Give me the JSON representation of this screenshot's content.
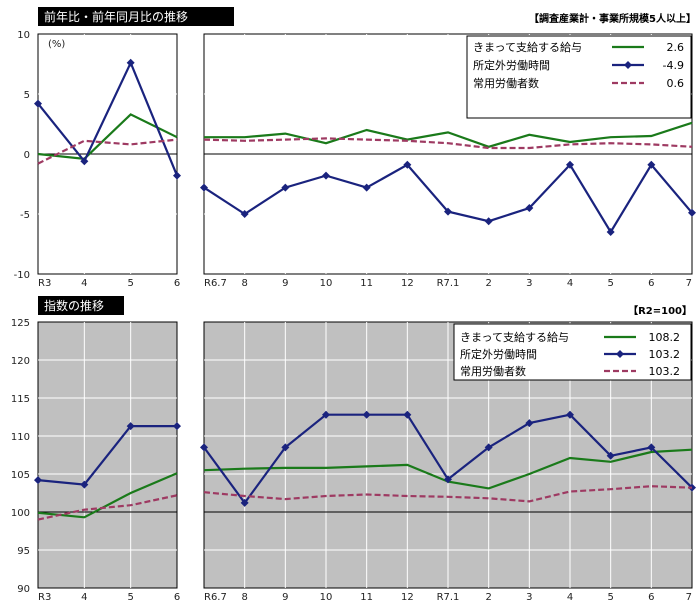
{
  "chart_data": [
    {
      "type": "line",
      "title": "前年比・前年同月比の推移",
      "note": "【調査産業計・事業所規模5人以上】",
      "unit_label": "(%)",
      "ylim": [
        -10,
        10
      ],
      "y_ticks": [
        10,
        5,
        0,
        -5,
        -10
      ],
      "left_categories": [
        "R3",
        "4",
        "5",
        "6"
      ],
      "right_categories": [
        "R6.7",
        "8",
        "9",
        "10",
        "11",
        "12",
        "R7.1",
        "2",
        "3",
        "4",
        "5",
        "6",
        "7"
      ],
      "series": [
        {
          "name": "きまって支給する給与",
          "legend_value": "2.6",
          "color": "#1a7a1a",
          "style": "solid",
          "marker": "none",
          "left_values": [
            0,
            -0.4,
            3.3,
            1.4
          ],
          "right_values": [
            1.4,
            1.4,
            1.7,
            0.9,
            2.0,
            1.2,
            1.8,
            0.6,
            1.6,
            1.0,
            1.4,
            1.5,
            2.6
          ]
        },
        {
          "name": "所定外労働時間",
          "legend_value": "-4.9",
          "color": "#1a237e",
          "style": "solid",
          "marker": "diamond",
          "left_values": [
            4.2,
            -0.6,
            7.6,
            -1.8
          ],
          "right_values": [
            -2.8,
            -5.0,
            -2.8,
            -1.8,
            -2.8,
            -0.9,
            -4.8,
            -5.6,
            -4.5,
            -0.9,
            -6.5,
            -0.9,
            -4.9
          ]
        },
        {
          "name": "常用労働者数",
          "legend_value": "0.6",
          "color": "#9e3a62",
          "style": "dashed",
          "marker": "none",
          "left_values": [
            -0.8,
            1.1,
            0.8,
            1.2
          ],
          "right_values": [
            1.2,
            1.1,
            1.2,
            1.3,
            1.2,
            1.1,
            0.9,
            0.5,
            0.5,
            0.8,
            0.9,
            0.8,
            0.6
          ]
        }
      ]
    },
    {
      "type": "line",
      "title": "指数の推移",
      "note": "【R2=100】",
      "ylim": [
        90,
        125
      ],
      "y_ticks": [
        125,
        120,
        115,
        110,
        105,
        100,
        95,
        90
      ],
      "left_categories": [
        "R3",
        "4",
        "5",
        "6"
      ],
      "right_categories": [
        "R6.7",
        "8",
        "9",
        "10",
        "11",
        "12",
        "R7.1",
        "2",
        "3",
        "4",
        "5",
        "6",
        "7"
      ],
      "series": [
        {
          "name": "きまって支給する給与",
          "legend_value": "108.2",
          "color": "#1a7a1a",
          "style": "solid",
          "marker": "none",
          "left_values": [
            99.9,
            99.3,
            102.5,
            105.1
          ],
          "right_values": [
            105.5,
            105.7,
            105.8,
            105.8,
            106.0,
            106.2,
            104.0,
            103.1,
            105.0,
            107.1,
            106.6,
            107.9,
            108.2
          ]
        },
        {
          "name": "所定外労働時間",
          "legend_value": "103.2",
          "color": "#1a237e",
          "style": "solid",
          "marker": "diamond",
          "left_values": [
            104.2,
            103.6,
            111.3,
            111.3
          ],
          "right_values": [
            108.5,
            101.2,
            108.5,
            112.8,
            112.8,
            112.8,
            104.3,
            108.5,
            111.7,
            112.8,
            107.4,
            108.5,
            103.2
          ]
        },
        {
          "name": "常用労働者数",
          "legend_value": "103.2",
          "color": "#9e3a62",
          "style": "dashed",
          "marker": "none",
          "left_values": [
            99.0,
            100.3,
            100.9,
            102.2
          ],
          "right_values": [
            102.6,
            102.1,
            101.7,
            102.1,
            102.3,
            102.1,
            102.0,
            101.8,
            101.4,
            102.7,
            103.0,
            103.4,
            103.2
          ]
        }
      ]
    }
  ]
}
